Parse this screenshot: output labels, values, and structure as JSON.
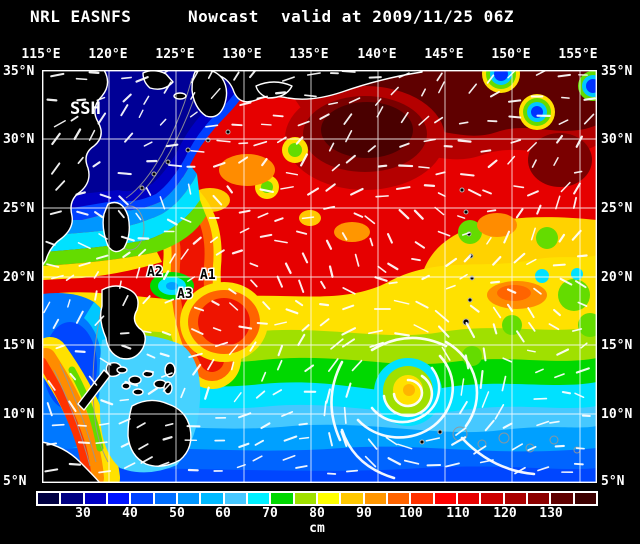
{
  "header": {
    "product": "NRL EASNFS",
    "mode": "Nowcast",
    "valid": "valid at 2009/11/25 06Z"
  },
  "map": {
    "field_label": "SSH",
    "lon_ticks": [
      "115°E",
      "120°E",
      "125°E",
      "130°E",
      "135°E",
      "140°E",
      "145°E",
      "150°E",
      "155°E"
    ],
    "lat_ticks": [
      "35°N",
      "30°N",
      "25°N",
      "20°N",
      "15°N",
      "10°N",
      "5°N"
    ],
    "annotations": [
      {
        "label": "A1"
      },
      {
        "label": "A2"
      },
      {
        "label": "A3"
      }
    ]
  },
  "colorbar": {
    "unit": "cm",
    "ticks": [
      "30",
      "40",
      "50",
      "60",
      "70",
      "80",
      "90",
      "100",
      "110",
      "120",
      "130"
    ],
    "colors": [
      "#000041",
      "#000082",
      "#0000c3",
      "#0014ff",
      "#0041ff",
      "#006eff",
      "#0096ff",
      "#00baff",
      "#46c8ff",
      "#00f0ff",
      "#00d800",
      "#a0e000",
      "#ffff00",
      "#ffc800",
      "#ff9600",
      "#ff6400",
      "#ff3200",
      "#ff0000",
      "#e60000",
      "#cd0000",
      "#aa0000",
      "#8c0000",
      "#5f0000",
      "#3c0000"
    ]
  },
  "chart_data": {
    "type": "heatmap",
    "title": "NRL EASNFS Nowcast valid at 2009/11/25 06Z",
    "field": "SSH",
    "unit": "cm",
    "lon_ticks_deg_e": [
      115,
      120,
      125,
      130,
      135,
      140,
      145,
      150,
      155
    ],
    "lat_ticks_deg_n": [
      35,
      30,
      25,
      20,
      15,
      10,
      5
    ],
    "colorbar_tick_values": [
      30,
      40,
      50,
      60,
      70,
      80,
      90,
      100,
      110,
      120,
      130
    ],
    "colorbar_step_cm": 5,
    "annotations": [
      "A1",
      "A2",
      "A3"
    ]
  }
}
